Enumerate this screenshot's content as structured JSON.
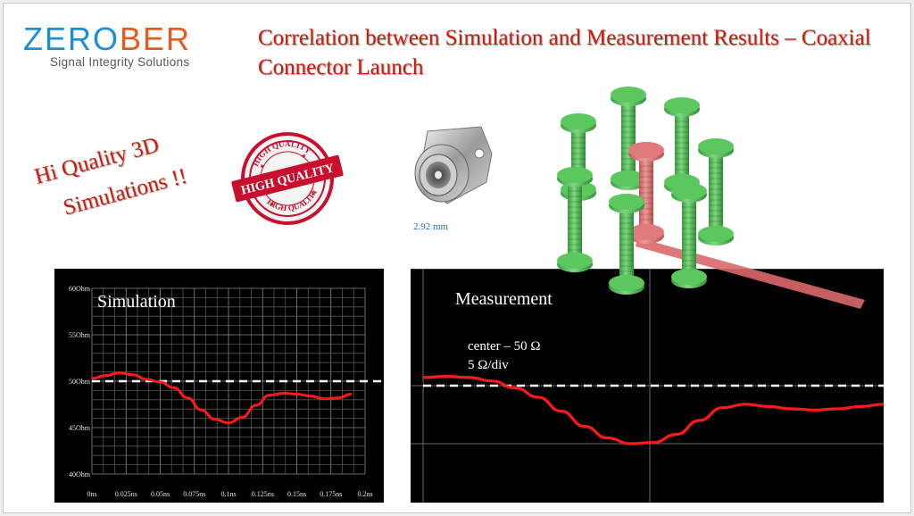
{
  "logo": {
    "word_part1": "ZERO",
    "word_part2": "BER",
    "tagline": "Signal Integrity Solutions"
  },
  "title": "Correlation between Simulation and Measurement Results – Coaxial Connector Launch",
  "hq": {
    "line1": "Hi Quality 3D",
    "line2": "Simulations !!",
    "stamp_top": "HIGH QUALITY",
    "stamp_center": "HIGH QUALITY",
    "stamp_bottom": "HIGH QUALITY"
  },
  "connector_label": "2.92 mm",
  "colors": {
    "accent_red": "#d11a0a",
    "trace_red": "#ff1a1a",
    "via_green": "#4caf50",
    "signal_via": "#d9686a"
  },
  "sim_chart": {
    "title": "Simulation",
    "y_ticks": [
      "60Ohm",
      "55Ohm",
      "50Ohm",
      "45Ohm",
      "40Ohm"
    ],
    "x_ticks": [
      "0ns",
      "0.025ns",
      "0.05ns",
      "0.075ns",
      "0.1ns",
      "0.125ns",
      "0.15ns",
      "0.175ns",
      "0.2ns"
    ]
  },
  "meas_chart": {
    "title": "Measurement",
    "note1": "center – 50 Ω",
    "note2": "5 Ω/div"
  },
  "chart_data": [
    {
      "type": "line",
      "title": "Simulation",
      "xlabel": "",
      "ylabel": "",
      "x": [
        0,
        0.01,
        0.02,
        0.03,
        0.04,
        0.05,
        0.06,
        0.07,
        0.08,
        0.09,
        0.1,
        0.11,
        0.12,
        0.13,
        0.14,
        0.15,
        0.16,
        0.17,
        0.18,
        0.19
      ],
      "y": [
        50.3,
        50.6,
        50.9,
        50.7,
        50.2,
        49.9,
        49.3,
        48.2,
        46.9,
        45.9,
        45.5,
        46.1,
        47.4,
        48.5,
        48.7,
        48.6,
        48.4,
        48.1,
        48.2,
        48.6
      ],
      "reference": 50,
      "xlim": [
        0,
        0.2
      ],
      "ylim": [
        40,
        60
      ],
      "grid": true
    },
    {
      "type": "line",
      "title": "Measurement",
      "center": 50,
      "per_division": 5,
      "x": [
        0,
        0.05,
        0.1,
        0.15,
        0.2,
        0.25,
        0.3,
        0.35,
        0.4,
        0.45,
        0.5,
        0.55,
        0.6,
        0.65,
        0.7,
        0.75,
        0.8,
        0.85,
        0.9,
        0.95,
        1.0
      ],
      "y": [
        50.7,
        50.8,
        50.7,
        50.4,
        49.8,
        49.0,
        47.8,
        46.5,
        45.5,
        45.0,
        45.1,
        45.8,
        47.0,
        48.1,
        48.4,
        48.2,
        48.0,
        47.9,
        48.0,
        48.2,
        48.4
      ],
      "reference": 50,
      "grid": true
    }
  ]
}
